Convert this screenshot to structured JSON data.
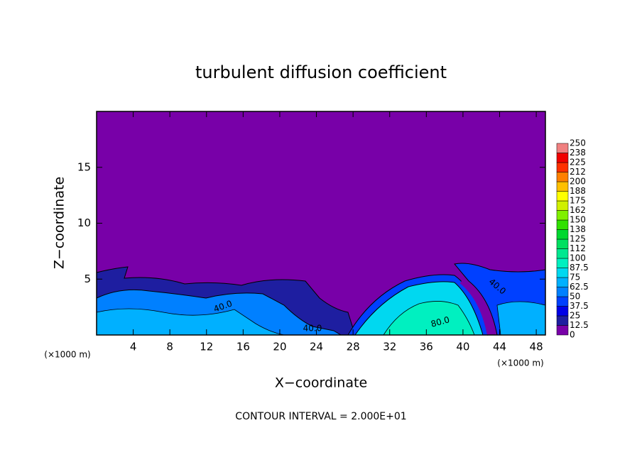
{
  "chart_data": {
    "type": "contour",
    "title": "turbulent diffusion coefficient",
    "x_label": "X−coordinate",
    "y_label": "Z−coordinate",
    "x_unit": "(×1000 m)",
    "y_unit": "(×1000 m)",
    "annotation": "CONTOUR INTERVAL = 2.000E+01",
    "contour_labels": [
      "40.0",
      "40.0",
      "80.0",
      "40.0"
    ],
    "xlim": [
      0,
      49
    ],
    "xticks": [
      4,
      8,
      12,
      16,
      20,
      24,
      28,
      32,
      36,
      40,
      44,
      48
    ],
    "ylim": [
      0,
      20
    ],
    "yticks": [
      5,
      10,
      15
    ],
    "colorbar": {
      "levels": [
        0,
        12.5,
        25,
        37.5,
        50,
        62.5,
        75,
        87.5,
        100,
        {
          "value": 112.5,
          "label": "112"
        },
        125,
        {
          "value": 137.5,
          "label": "138"
        },
        150,
        {
          "value": 162.5,
          "label": "162"
        },
        175,
        {
          "value": 187.5,
          "label": "188"
        },
        200,
        {
          "value": 212.5,
          "label": "212"
        },
        225,
        {
          "value": 237.5,
          "label": "238"
        },
        250
      ],
      "colors": [
        "#7800a8",
        "#1e1ea0",
        "#0000e6",
        "#0040ff",
        "#0080ff",
        "#00b0ff",
        "#00d8f0",
        "#00f0c0",
        "#00e890",
        "#00e060",
        "#00d830",
        "#30e000",
        "#80f000",
        "#d0f000",
        "#ffff00",
        "#ffc000",
        "#ff8000",
        "#ff3000",
        "#f00000",
        "#f08080"
      ]
    }
  }
}
